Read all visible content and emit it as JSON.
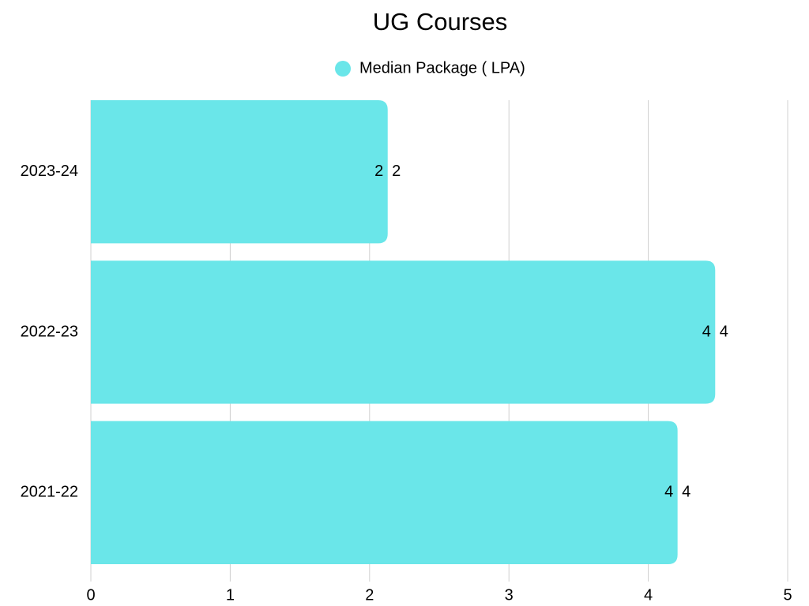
{
  "chart_data": {
    "type": "bar",
    "orientation": "horizontal",
    "title": "UG Courses",
    "categories": [
      "2023-24",
      "2022-23",
      "2021-22"
    ],
    "series": [
      {
        "name": "Median Package ( LPA)",
        "color": "#6ae6e9",
        "values": [
          2.13,
          4.48,
          4.21
        ],
        "value_labels": [
          "2",
          "4",
          "4"
        ]
      }
    ],
    "xlim": [
      0,
      5
    ],
    "xticks": [
      0,
      1,
      2,
      3,
      4,
      5
    ],
    "grid": true,
    "legend": "top"
  }
}
